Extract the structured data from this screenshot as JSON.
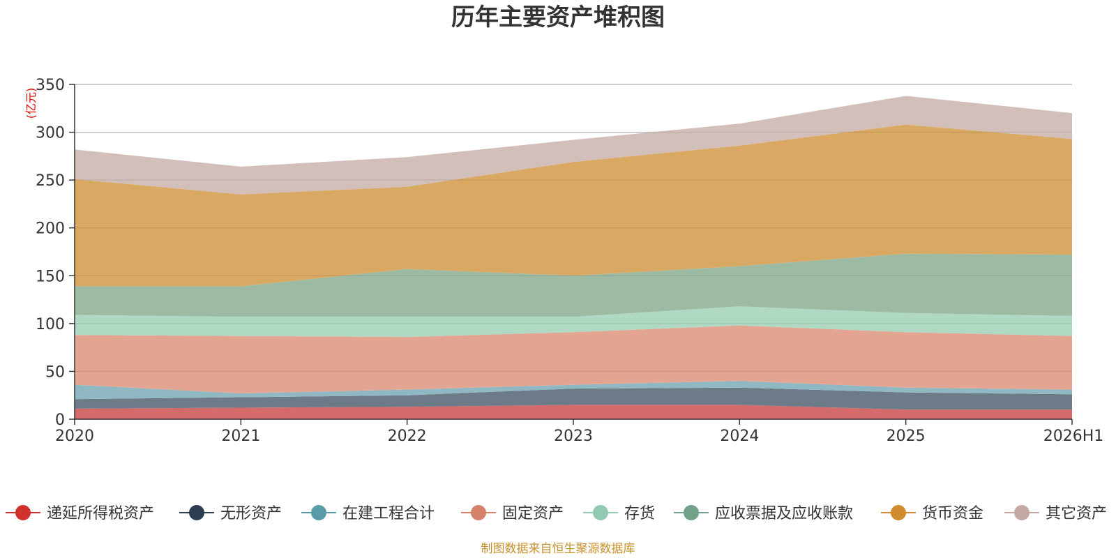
{
  "chart_data": {
    "type": "area",
    "stacked": true,
    "title": "历年主要资产堆积图",
    "unit_label": "(亿元)",
    "categories": [
      "2020",
      "2021",
      "2022",
      "2023",
      "2024",
      "2025",
      "2026H1"
    ],
    "ylim": [
      0,
      350
    ],
    "yticks": [
      0,
      50,
      100,
      150,
      200,
      250,
      300,
      350
    ],
    "grid": true,
    "legend_position": "bottom",
    "series": [
      {
        "name": "递延所得税资产",
        "color": "#d0302e",
        "fill": "#d46a6a",
        "values": [
          11,
          12,
          13,
          15,
          15,
          10,
          10
        ]
      },
      {
        "name": "无形资产",
        "color": "#2c3e50",
        "fill": "#6d7b88",
        "values": [
          10,
          11,
          12,
          17,
          18,
          18,
          16
        ]
      },
      {
        "name": "在建工程合计",
        "color": "#5a9ba8",
        "fill": "#8fb8c2",
        "values": [
          15,
          4,
          6,
          4,
          7,
          5,
          5
        ]
      },
      {
        "name": "固定资产",
        "color": "#d4826a",
        "fill": "#e3a592",
        "values": [
          52,
          60,
          55,
          55,
          58,
          58,
          56
        ]
      },
      {
        "name": "存货",
        "color": "#92c9b0",
        "fill": "#b0d9c4",
        "values": [
          21,
          20,
          21,
          16,
          20,
          20,
          21
        ]
      },
      {
        "name": "应收票据及应收账款",
        "color": "#72a088",
        "fill": "#9dbba3",
        "values": [
          30,
          32,
          50,
          43,
          42,
          62,
          64
        ]
      },
      {
        "name": "货币资金",
        "color": "#cf8b2e",
        "fill": "#d9a963",
        "values": [
          112,
          96,
          86,
          119,
          126,
          135,
          121
        ]
      },
      {
        "name": "其它资产",
        "color": "#c4a9a2",
        "fill": "#d2bfba",
        "values": [
          31,
          29,
          31,
          23,
          23,
          30,
          27
        ]
      }
    ],
    "source_note": "制图数据来自恒生聚源数据库"
  }
}
